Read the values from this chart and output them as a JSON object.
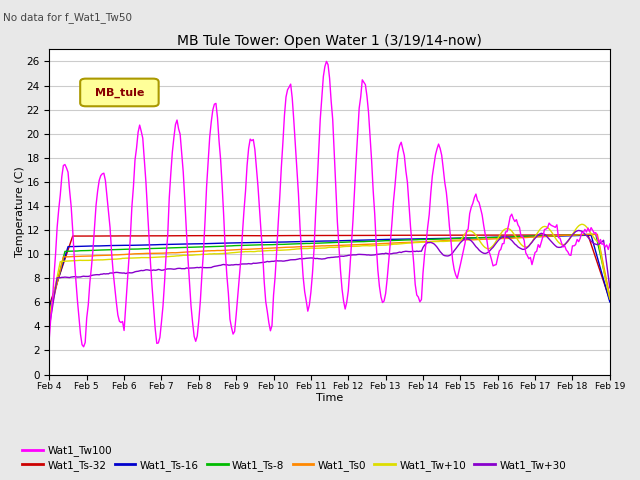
{
  "title": "MB Tule Tower: Open Water 1 (3/19/14-now)",
  "subtitle": "No data for f_Wat1_Tw50",
  "xlabel": "Time",
  "ylabel": "Temperature (C)",
  "ylim": [
    0,
    27
  ],
  "yticks": [
    0,
    2,
    4,
    6,
    8,
    10,
    12,
    14,
    16,
    18,
    20,
    22,
    24,
    26
  ],
  "legend_label": "MB_tule",
  "legend_entries": [
    {
      "label": "Wat1_Ts-32",
      "color": "#cc0000"
    },
    {
      "label": "Wat1_Ts-16",
      "color": "#0000cc"
    },
    {
      "label": "Wat1_Ts-8",
      "color": "#00bb00"
    },
    {
      "label": "Wat1_Ts0",
      "color": "#ff8800"
    },
    {
      "label": "Wat1_Tw+10",
      "color": "#dddd00"
    },
    {
      "label": "Wat1_Tw+30",
      "color": "#8800cc"
    },
    {
      "label": "Wat1_Tw100",
      "color": "#ff00ff"
    }
  ],
  "bg_color": "#e8e8e8",
  "plot_bg": "#ffffff",
  "grid_color": "#cccccc",
  "figsize": [
    6.4,
    4.8
  ],
  "dpi": 100
}
